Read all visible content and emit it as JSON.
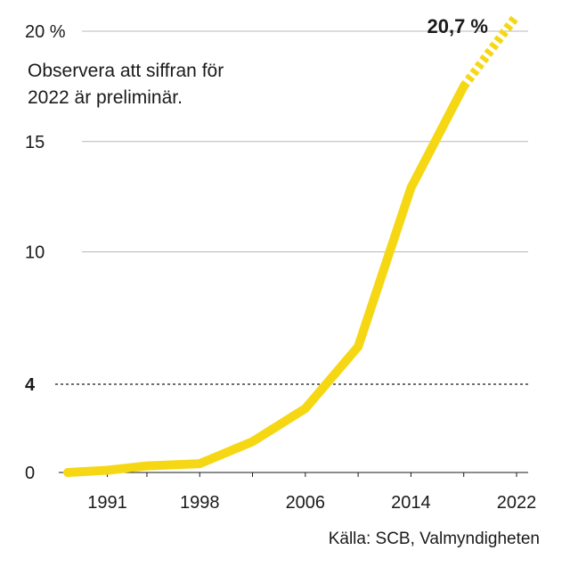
{
  "chart_data": {
    "type": "line",
    "x": [
      1988,
      1991,
      1994,
      1998,
      2002,
      2006,
      2010,
      2014,
      2018,
      2022
    ],
    "series": [
      {
        "values": [
          0.0,
          0.1,
          0.3,
          0.4,
          1.4,
          2.9,
          5.7,
          12.9,
          17.5,
          20.7
        ],
        "color": "#f6d714",
        "preliminary_from_x": 2018
      }
    ],
    "xticks": [
      "1991",
      "1998",
      "2006",
      "2014",
      "2022"
    ],
    "xtick_values": [
      1991,
      1998,
      2006,
      2014,
      2022
    ],
    "yticks": [
      "0",
      "10",
      "15",
      "20 %"
    ],
    "ytick_values": [
      0,
      10,
      15,
      20
    ],
    "xlim": [
      1988,
      2022
    ],
    "ylim": [
      0,
      20
    ],
    "grid": true,
    "threshold": {
      "value": 4,
      "label": "4",
      "style": "dashed"
    },
    "note_lines": [
      "Observera att siffran för",
      "2022 är preliminär."
    ],
    "last_label": "20,7 %",
    "source": "Källa: SCB, Valmyndigheten",
    "colors": {
      "line": "#f6d714",
      "grid": "#b8b8b8",
      "text": "#1a1a1a"
    }
  }
}
